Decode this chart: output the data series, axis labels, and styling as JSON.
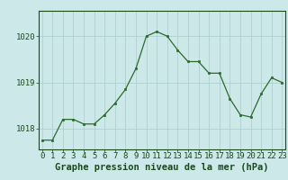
{
  "x": [
    0,
    1,
    2,
    3,
    4,
    5,
    6,
    7,
    8,
    9,
    10,
    11,
    12,
    13,
    14,
    15,
    16,
    17,
    18,
    19,
    20,
    21,
    22,
    23
  ],
  "y": [
    1017.75,
    1017.75,
    1018.2,
    1018.2,
    1018.1,
    1018.1,
    1018.3,
    1018.55,
    1018.85,
    1019.3,
    1020.0,
    1020.1,
    1020.0,
    1019.7,
    1019.45,
    1019.45,
    1019.2,
    1019.2,
    1018.65,
    1018.3,
    1018.25,
    1018.75,
    1019.1,
    1019.0
  ],
  "line_color": "#2d6a2d",
  "marker_color": "#2d6a2d",
  "bg_color": "#cce8e8",
  "grid_color": "#aacccc",
  "text_color": "#1a4a1a",
  "title": "Graphe pression niveau de la mer (hPa)",
  "ytick_labels": [
    "1018",
    "1019",
    "1020"
  ],
  "ytick_vals": [
    1018,
    1019,
    1020
  ],
  "ylim": [
    1017.55,
    1020.55
  ],
  "xlim": [
    -0.3,
    23.3
  ],
  "title_fontsize": 7.5,
  "tick_fontsize": 6.5
}
